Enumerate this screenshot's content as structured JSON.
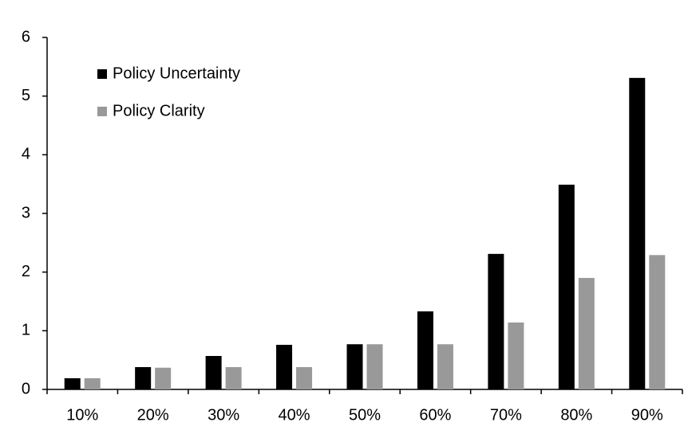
{
  "chart_data": {
    "type": "bar",
    "categories": [
      "10%",
      "20%",
      "30%",
      "40%",
      "50%",
      "60%",
      "70%",
      "80%",
      "90%"
    ],
    "series": [
      {
        "name": "Policy Uncertainty",
        "color": "#000000",
        "values": [
          0.19,
          0.38,
          0.57,
          0.76,
          0.77,
          1.33,
          2.31,
          3.49,
          5.31
        ]
      },
      {
        "name": "Policy Clarity",
        "color": "#999999",
        "values": [
          0.19,
          0.37,
          0.38,
          0.38,
          0.77,
          0.77,
          1.14,
          1.9,
          2.29
        ]
      }
    ],
    "ylim": [
      0,
      6
    ],
    "yticks": [
      0,
      1,
      2,
      3,
      4,
      5,
      6
    ],
    "grid": false,
    "legend": "top-left"
  }
}
